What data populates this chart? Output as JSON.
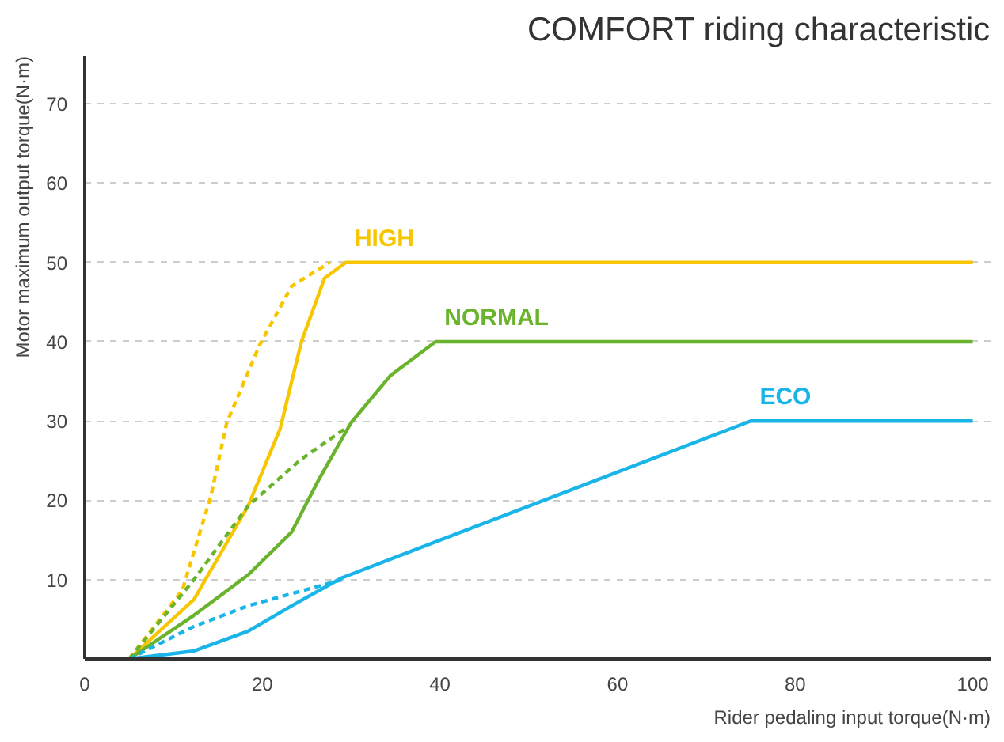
{
  "chart_data": {
    "type": "line",
    "title": "COMFORT riding characteristic",
    "xlabel": "Rider pedaling input torque(N·m)",
    "ylabel": "Motor maximum output torque(N·m)",
    "xlim": [
      0,
      102
    ],
    "ylim": [
      0,
      76
    ],
    "xticks": [
      0,
      20,
      40,
      60,
      80,
      100
    ],
    "yticks": [
      10,
      20,
      30,
      40,
      50,
      60,
      70
    ],
    "grid": "y",
    "series": [
      {
        "name": "HIGH",
        "color": "#f8c600",
        "x": [
          0,
          5,
          12.3,
          18.4,
          22,
          24.4,
          27,
          29.4,
          100
        ],
        "values": [
          0,
          0,
          7.5,
          19.3,
          29,
          40,
          48,
          50,
          50
        ]
      },
      {
        "color": "#f8c600",
        "line_style": "dashed",
        "x": [
          5,
          11,
          14.2,
          16,
          19.7,
          23.3,
          27.6
        ],
        "values": [
          0,
          8.7,
          20.5,
          29.8,
          39.6,
          47,
          50
        ]
      },
      {
        "name": "NORMAL",
        "color": "#6ab42d",
        "x": [
          5,
          12.3,
          18.4,
          23.3,
          26.3,
          30,
          34.4,
          39.5,
          100
        ],
        "values": [
          0,
          5.5,
          10.6,
          16,
          22.5,
          29.8,
          35.7,
          40,
          40
        ]
      },
      {
        "color": "#6ab42d",
        "line_style": "dashed",
        "x": [
          5,
          12.3,
          18.4,
          24.4,
          29.8
        ],
        "values": [
          0,
          10,
          19.3,
          25.2,
          29.4
        ]
      },
      {
        "name": "ECO",
        "color": "#19b5e8",
        "x": [
          0,
          5,
          12.3,
          18.4,
          23.3,
          28.9,
          75,
          100
        ],
        "values": [
          0,
          0,
          1,
          3.5,
          6.7,
          10.2,
          30,
          30
        ]
      },
      {
        "color": "#19b5e8",
        "line_style": "dashed",
        "x": [
          5,
          12.3,
          18.4,
          29
        ],
        "values": [
          0,
          4.1,
          6.7,
          10
        ]
      }
    ]
  }
}
